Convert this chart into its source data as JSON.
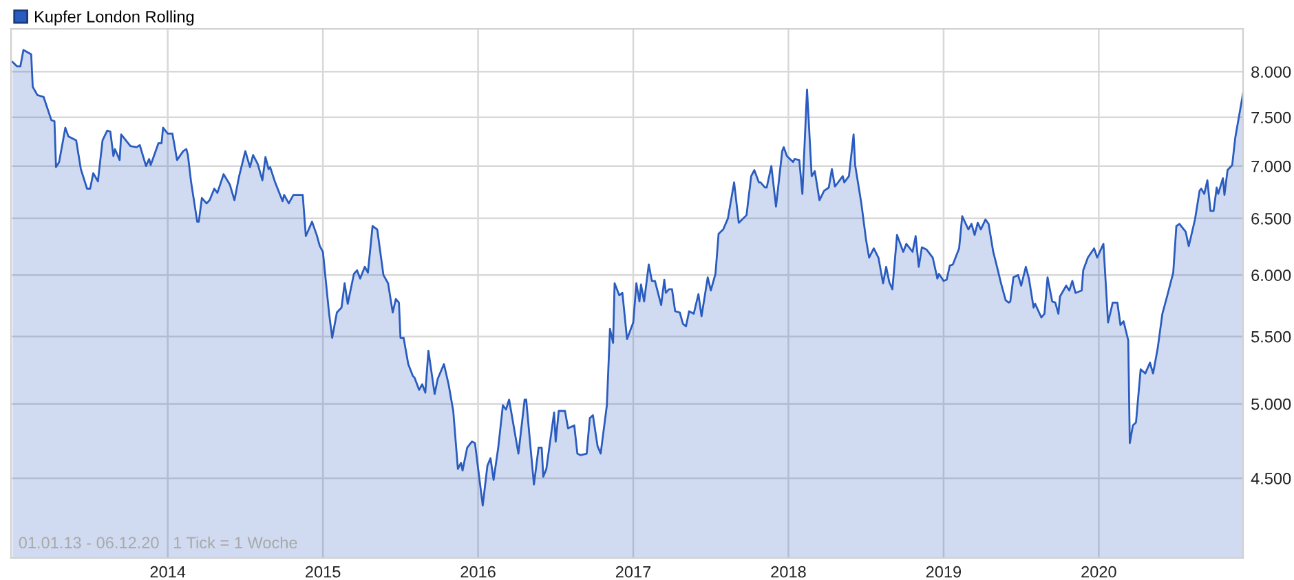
{
  "chart_data": {
    "type": "area",
    "log": "y",
    "grid": true,
    "legend": "top left",
    "xlim": [
      2012.99,
      2020.93
    ],
    "ylim": [
      4020,
      8500
    ],
    "xticks": [
      2014,
      2015,
      2016,
      2017,
      2018,
      2019,
      2020
    ],
    "yticks": [
      {
        "value": 4500,
        "label": "4.500"
      },
      {
        "value": 5000,
        "label": "5.000"
      },
      {
        "value": 5500,
        "label": "5.500"
      },
      {
        "value": 6000,
        "label": "6.000"
      },
      {
        "value": 6500,
        "label": "6.500"
      },
      {
        "value": 7000,
        "label": "7.000"
      },
      {
        "value": 7500,
        "label": "7.500"
      },
      {
        "value": 8000,
        "label": "8.000"
      }
    ],
    "annotations": [
      "01.01.13 - 06.12.20   1 Tick = 1 Woche"
    ],
    "series": [
      {
        "name": "Kupfer London Rolling",
        "color": "#2a5cbf",
        "x": [
          2013.0,
          2013.03,
          2013.05,
          2013.07,
          2013.12,
          2013.13,
          2013.16,
          2013.2,
          2013.25,
          2013.27,
          2013.28,
          2013.3,
          2013.34,
          2013.36,
          2013.41,
          2013.44,
          2013.48,
          2013.5,
          2013.52,
          2013.55,
          2013.58,
          2013.61,
          2013.63,
          2013.65,
          2013.66,
          2013.69,
          2013.7,
          2013.76,
          2013.8,
          2013.82,
          2013.86,
          2013.88,
          2013.89,
          2013.94,
          2013.96,
          2013.97,
          2014.0,
          2014.03,
          2014.06,
          2014.1,
          2014.12,
          2014.13,
          2014.15,
          2014.19,
          2014.2,
          2014.22,
          2014.25,
          2014.27,
          2014.3,
          2014.32,
          2014.36,
          2014.4,
          2014.43,
          2014.46,
          2014.5,
          2014.53,
          2014.55,
          2014.58,
          2014.61,
          2014.63,
          2014.65,
          2014.66,
          2014.69,
          2014.74,
          2014.75,
          2014.78,
          2014.81,
          2014.87,
          2014.89,
          2014.93,
          2014.96,
          2014.98,
          2015.0,
          2015.04,
          2015.06,
          2015.09,
          2015.12,
          2015.14,
          2015.16,
          2015.2,
          2015.22,
          2015.24,
          2015.27,
          2015.29,
          2015.32,
          2015.35,
          2015.39,
          2015.42,
          2015.45,
          2015.47,
          2015.49,
          2015.5,
          2015.52,
          2015.55,
          2015.58,
          2015.59,
          2015.62,
          2015.64,
          2015.66,
          2015.68,
          2015.72,
          2015.74,
          2015.78,
          2015.81,
          2015.84,
          2015.87,
          2015.89,
          2015.9,
          2015.93,
          2015.96,
          2015.98,
          2016.03,
          2016.06,
          2016.08,
          2016.1,
          2016.13,
          2016.16,
          2016.18,
          2016.2,
          2016.26,
          2016.3,
          2016.31,
          2016.36,
          2016.39,
          2016.41,
          2016.42,
          2016.44,
          2016.49,
          2016.5,
          2016.52,
          2016.56,
          2016.58,
          2016.62,
          2016.64,
          2016.66,
          2016.7,
          2016.72,
          2016.74,
          2016.77,
          2016.79,
          2016.83,
          2016.85,
          2016.87,
          2016.88,
          2016.91,
          2016.93,
          2016.96,
          2017.0,
          2017.02,
          2017.04,
          2017.05,
          2017.07,
          2017.1,
          2017.12,
          2017.14,
          2017.18,
          2017.2,
          2017.21,
          2017.23,
          2017.25,
          2017.27,
          2017.3,
          2017.32,
          2017.34,
          2017.36,
          2017.39,
          2017.42,
          2017.44,
          2017.48,
          2017.5,
          2017.53,
          2017.55,
          2017.58,
          2017.61,
          2017.65,
          2017.68,
          2017.73,
          2017.76,
          2017.78,
          2017.81,
          2017.82,
          2017.85,
          2017.86,
          2017.89,
          2017.92,
          2017.96,
          2017.97,
          2017.99,
          2018.03,
          2018.04,
          2018.07,
          2018.09,
          2018.12,
          2018.15,
          2018.17,
          2018.2,
          2018.23,
          2018.26,
          2018.28,
          2018.3,
          2018.35,
          2018.36,
          2018.39,
          2018.42,
          2018.43,
          2018.47,
          2018.5,
          2018.52,
          2018.55,
          2018.58,
          2018.61,
          2018.63,
          2018.65,
          2018.67,
          2018.7,
          2018.74,
          2018.76,
          2018.8,
          2018.82,
          2018.84,
          2018.86,
          2018.89,
          2018.93,
          2018.96,
          2018.97,
          2019.0,
          2019.02,
          2019.04,
          2019.06,
          2019.1,
          2019.12,
          2019.16,
          2019.18,
          2019.2,
          2019.22,
          2019.24,
          2019.27,
          2019.29,
          2019.32,
          2019.35,
          2019.37,
          2019.4,
          2019.42,
          2019.43,
          2019.45,
          2019.48,
          2019.5,
          2019.53,
          2019.55,
          2019.58,
          2019.59,
          2019.63,
          2019.65,
          2019.67,
          2019.7,
          2019.72,
          2019.74,
          2019.75,
          2019.79,
          2019.81,
          2019.83,
          2019.85,
          2019.89,
          2019.9,
          2019.93,
          2019.97,
          2019.99,
          2020.03,
          2020.06,
          2020.09,
          2020.12,
          2020.14,
          2020.16,
          2020.19,
          2020.2,
          2020.22,
          2020.24,
          2020.27,
          2020.3,
          2020.33,
          2020.35,
          2020.38,
          2020.41,
          2020.44,
          2020.48,
          2020.5,
          2020.52,
          2020.56,
          2020.58,
          2020.62,
          2020.65,
          2020.66,
          2020.68,
          2020.7,
          2020.72,
          2020.74,
          2020.76,
          2020.77,
          2020.8,
          2020.81,
          2020.83,
          2020.86,
          2020.88,
          2020.93
        ],
        "values": [
          8110,
          8060,
          8060,
          8250,
          8200,
          7830,
          7740,
          7720,
          7470,
          7460,
          6990,
          7040,
          7390,
          7300,
          7260,
          6970,
          6780,
          6780,
          6930,
          6850,
          7260,
          7360,
          7350,
          7100,
          7170,
          7060,
          7320,
          7200,
          7190,
          7210,
          7000,
          7070,
          7010,
          7230,
          7230,
          7390,
          7330,
          7330,
          7060,
          7150,
          7170,
          7110,
          6850,
          6470,
          6470,
          6690,
          6640,
          6670,
          6780,
          6740,
          6920,
          6820,
          6670,
          6900,
          7150,
          6990,
          7110,
          7020,
          6860,
          7090,
          6970,
          6990,
          6850,
          6660,
          6720,
          6640,
          6720,
          6720,
          6340,
          6470,
          6350,
          6250,
          6200,
          5680,
          5490,
          5690,
          5730,
          5930,
          5760,
          6010,
          6040,
          5970,
          6070,
          6020,
          6430,
          6400,
          6000,
          5930,
          5690,
          5800,
          5770,
          5490,
          5490,
          5290,
          5200,
          5190,
          5100,
          5140,
          5080,
          5390,
          5070,
          5180,
          5290,
          5140,
          4950,
          4560,
          4600,
          4550,
          4700,
          4740,
          4730,
          4330,
          4580,
          4630,
          4490,
          4700,
          4990,
          4960,
          5030,
          4660,
          5030,
          5030,
          4460,
          4700,
          4700,
          4510,
          4560,
          4940,
          4740,
          4950,
          4950,
          4830,
          4850,
          4660,
          4650,
          4660,
          4900,
          4920,
          4710,
          4660,
          4990,
          5560,
          5450,
          5930,
          5830,
          5850,
          5480,
          5610,
          5930,
          5780,
          5920,
          5780,
          6090,
          5950,
          5950,
          5750,
          5960,
          5850,
          5880,
          5880,
          5700,
          5690,
          5600,
          5580,
          5700,
          5680,
          5840,
          5660,
          5980,
          5870,
          6010,
          6360,
          6400,
          6500,
          6840,
          6460,
          6530,
          6900,
          6960,
          6840,
          6840,
          6790,
          6790,
          7000,
          6610,
          7150,
          7190,
          7100,
          7040,
          7070,
          7060,
          6730,
          7800,
          6900,
          6950,
          6670,
          6760,
          6790,
          6970,
          6800,
          6900,
          6840,
          6900,
          7320,
          7010,
          6640,
          6310,
          6150,
          6230,
          6150,
          5930,
          6070,
          5940,
          5880,
          6350,
          6200,
          6270,
          6200,
          6340,
          6070,
          6240,
          6220,
          6150,
          5970,
          6010,
          5950,
          5960,
          6080,
          6090,
          6230,
          6520,
          6400,
          6450,
          6350,
          6460,
          6400,
          6490,
          6450,
          6200,
          6040,
          5930,
          5790,
          5770,
          5780,
          5980,
          6000,
          5910,
          6070,
          5970,
          5730,
          5760,
          5650,
          5680,
          5980,
          5780,
          5770,
          5680,
          5820,
          5910,
          5870,
          5950,
          5850,
          5870,
          6040,
          6150,
          6230,
          6150,
          6270,
          5610,
          5770,
          5770,
          5590,
          5620,
          5470,
          4730,
          4850,
          4870,
          5250,
          5220,
          5300,
          5220,
          5410,
          5680,
          5820,
          6020,
          6430,
          6450,
          6380,
          6250,
          6490,
          6760,
          6780,
          6730,
          6860,
          6570,
          6570,
          6790,
          6730,
          6880,
          6720,
          6960,
          7010,
          7290,
          7760
        ]
      }
    ]
  }
}
